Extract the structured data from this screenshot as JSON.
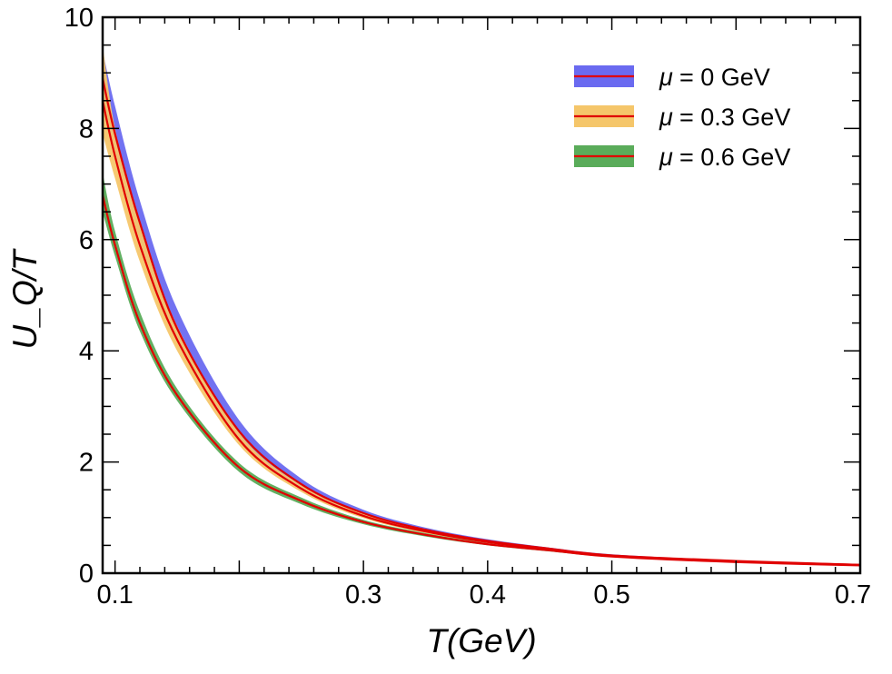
{
  "chart_data": {
    "type": "line",
    "title": "",
    "xlabel": "T(GeV)",
    "ylabel": "U_Q/T",
    "xlim": [
      0.09,
      0.7
    ],
    "ylim": [
      0,
      10
    ],
    "x_ticks": [
      0.1,
      0.3,
      0.4,
      0.5,
      0.7
    ],
    "x_tick_labels": [
      "0.1",
      "0.3",
      "0.4",
      "0.5",
      "0.7"
    ],
    "y_ticks": [
      0,
      2,
      4,
      6,
      8,
      10
    ],
    "y_tick_labels": [
      "0",
      "2",
      "4",
      "6",
      "8",
      "10"
    ],
    "grid": false,
    "legend_position": "top-right",
    "x": [
      0.09,
      0.1,
      0.12,
      0.15,
      0.2,
      0.25,
      0.3,
      0.35,
      0.4,
      0.45,
      0.5,
      0.6,
      0.7
    ],
    "series": [
      {
        "name": "μ = 0 GeV",
        "legend_text": "= 0 GeV",
        "band_color": "#6a6af0",
        "line_color": "#e00000",
        "center": [
          8.9,
          7.9,
          6.3,
          4.4,
          2.55,
          1.6,
          1.08,
          0.78,
          0.58,
          0.44,
          0.32,
          0.22,
          0.15
        ],
        "lower": [
          8.5,
          7.6,
          6.0,
          4.2,
          2.4,
          1.52,
          1.03,
          0.75,
          0.56,
          0.43,
          0.31,
          0.21,
          0.14
        ],
        "upper": [
          9.4,
          8.4,
          6.7,
          4.75,
          2.75,
          1.7,
          1.14,
          0.82,
          0.61,
          0.46,
          0.34,
          0.23,
          0.16
        ]
      },
      {
        "name": "μ = 0.3 GeV",
        "legend_text": "= 0.3 GeV",
        "band_color": "#f5c66a",
        "line_color": "#e00000",
        "center": [
          8.5,
          7.5,
          5.9,
          4.2,
          2.4,
          1.52,
          1.03,
          0.75,
          0.56,
          0.43,
          0.31,
          0.21,
          0.15
        ],
        "lower": [
          7.9,
          7.1,
          5.6,
          4.0,
          2.3,
          1.46,
          0.99,
          0.72,
          0.54,
          0.42,
          0.3,
          0.2,
          0.14
        ],
        "upper": [
          9.5,
          8.0,
          6.3,
          4.45,
          2.52,
          1.58,
          1.07,
          0.78,
          0.58,
          0.44,
          0.32,
          0.22,
          0.16
        ]
      },
      {
        "name": "μ = 0.6 GeV",
        "legend_text": "= 0.6 GeV",
        "band_color": "#5aac5a",
        "line_color": "#e00000",
        "center": [
          6.8,
          5.9,
          4.5,
          3.2,
          1.9,
          1.3,
          0.92,
          0.69,
          0.52,
          0.41,
          0.3,
          0.2,
          0.14
        ],
        "lower": [
          6.5,
          5.7,
          4.35,
          3.1,
          1.82,
          1.24,
          0.88,
          0.66,
          0.5,
          0.39,
          0.29,
          0.19,
          0.13
        ],
        "upper": [
          7.2,
          6.15,
          4.7,
          3.32,
          1.98,
          1.36,
          0.96,
          0.72,
          0.54,
          0.42,
          0.31,
          0.21,
          0.15
        ]
      }
    ]
  }
}
